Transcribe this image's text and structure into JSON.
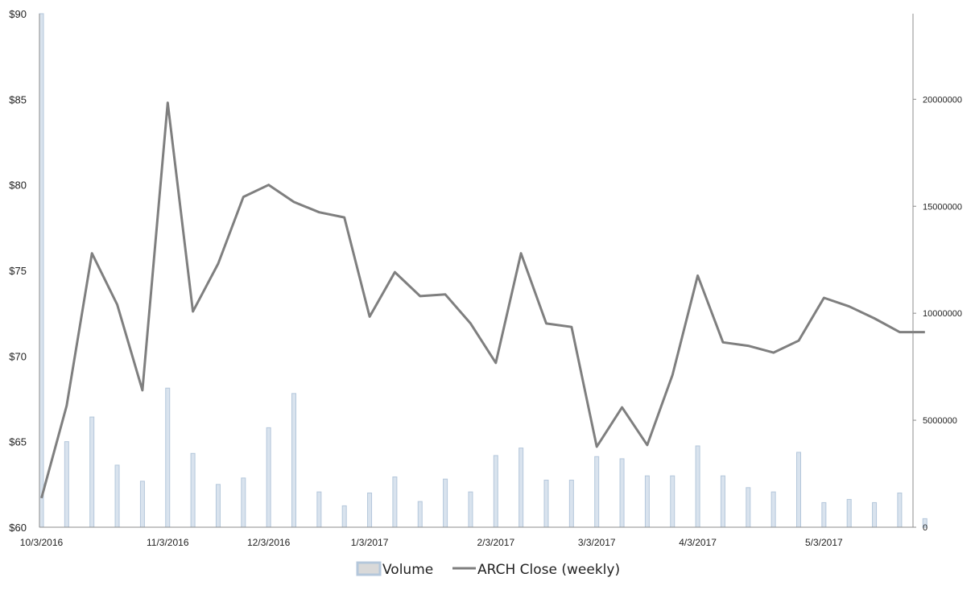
{
  "chart_data": {
    "type": "bar+line",
    "x_tick_labels": [
      "10/3/2016",
      "11/3/2016",
      "12/3/2016",
      "1/3/2017",
      "2/3/2017",
      "3/3/2017",
      "4/3/2017",
      "5/3/2017"
    ],
    "y_left_tick_labels": [
      "$60",
      "$65",
      "$70",
      "$75",
      "$80",
      "$85",
      "$90"
    ],
    "y_right_tick_labels": [
      "0",
      "5000000",
      "10000000",
      "15000000",
      "20000000"
    ],
    "y_left_range": [
      60,
      90
    ],
    "y_right_range": [
      0,
      24000000
    ],
    "legend": [
      "Volume",
      "ARCH Close (weekly)"
    ],
    "legend_placement": "bottom",
    "colors": {
      "volume_fill": "#d9e3ee",
      "volume_edge": "#b4c7db",
      "line": "#7f7f7f",
      "axis": "#8c8c8c"
    },
    "series": [
      {
        "name": "Volume",
        "type": "bar",
        "axis": "right",
        "values": [
          24000000,
          4000000,
          5150000,
          2900000,
          2150000,
          6500000,
          3450000,
          2000000,
          2300000,
          4650000,
          6250000,
          1650000,
          1000000,
          1600000,
          2350000,
          1200000,
          2250000,
          1650000,
          3350000,
          3700000,
          2200000,
          2200000,
          3300000,
          3200000,
          2400000,
          2400000,
          3800000,
          2400000,
          1850000,
          1650000,
          3500000,
          1150000,
          1300000,
          1150000,
          1600000,
          400000
        ]
      },
      {
        "name": "ARCH Close (weekly)",
        "type": "line",
        "axis": "left",
        "values": [
          61.7,
          67.1,
          76.0,
          73.0,
          68.0,
          84.8,
          72.6,
          75.4,
          79.3,
          80.0,
          79.0,
          78.4,
          78.1,
          72.3,
          74.9,
          73.5,
          73.6,
          71.9,
          69.6,
          76.0,
          71.9,
          71.7,
          64.7,
          67.0,
          64.8,
          68.9,
          74.7,
          70.8,
          70.6,
          70.2,
          70.9,
          73.4,
          72.9,
          72.2,
          71.4,
          71.4
        ]
      }
    ]
  }
}
